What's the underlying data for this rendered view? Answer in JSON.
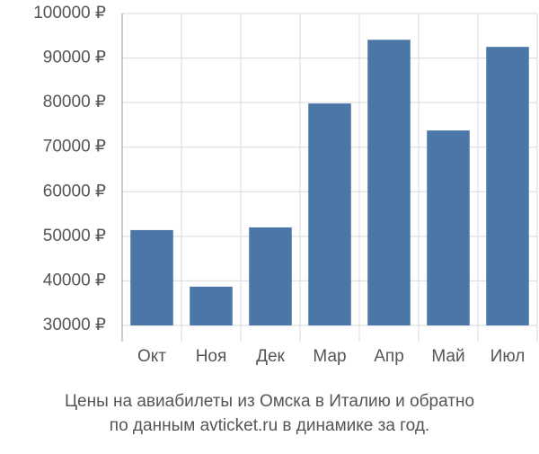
{
  "chart_data": {
    "type": "bar",
    "title": [
      "Цены на авиабилеты из Омска в Италию и обратно",
      "по данным avticket.ru в динамике за год."
    ],
    "categories": [
      "Окт",
      "Ноя",
      "Дек",
      "Мар",
      "Апр",
      "Май",
      "Июл"
    ],
    "values": [
      51400,
      38700,
      52000,
      79800,
      94100,
      73750,
      92500
    ],
    "color": "#4a76a8",
    "ylim": [
      30000,
      100000
    ],
    "yticks": [
      {
        "value": 30000,
        "label": "30000 ₽"
      },
      {
        "value": 40000,
        "label": "40000 ₽"
      },
      {
        "value": 50000,
        "label": "50000 ₽"
      },
      {
        "value": 60000,
        "label": "60000 ₽"
      },
      {
        "value": 70000,
        "label": "70000 ₽"
      },
      {
        "value": 80000,
        "label": "80000 ₽"
      },
      {
        "value": 90000,
        "label": "90000 ₽"
      },
      {
        "value": 100000,
        "label": "100000 ₽"
      }
    ],
    "grid": true
  }
}
